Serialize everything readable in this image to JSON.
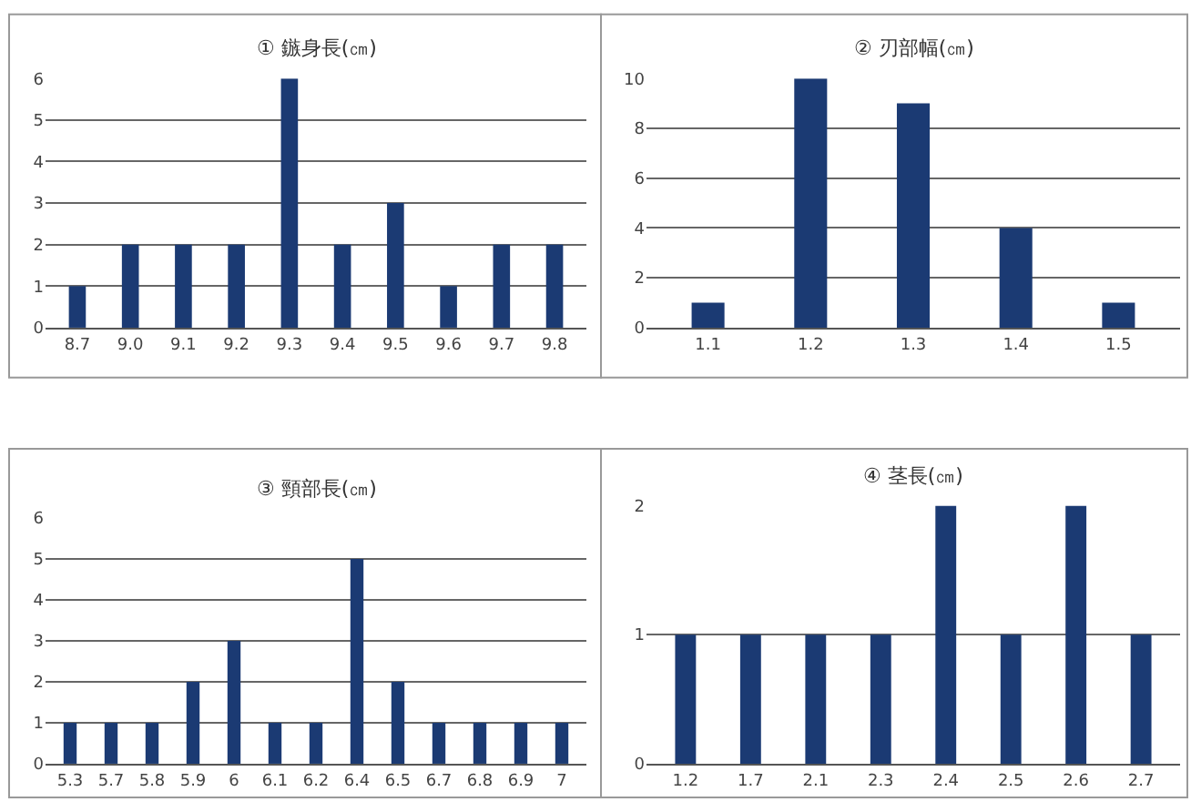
{
  "chart_data": [
    {
      "type": "bar",
      "title": "① 鏃身長(㎝)",
      "categories": [
        "8.7",
        "9.0",
        "9.1",
        "9.2",
        "9.3",
        "9.4",
        "9.5",
        "9.6",
        "9.7",
        "9.8"
      ],
      "values": [
        1,
        2,
        2,
        2,
        6,
        2,
        3,
        1,
        2,
        2
      ],
      "color": "#1b3a73",
      "ylim": [
        0,
        6
      ],
      "yticks": [
        0,
        1,
        2,
        3,
        4,
        5,
        6
      ],
      "grid": "y"
    },
    {
      "type": "bar",
      "title": "② 刃部幅(㎝)",
      "categories": [
        "1.1",
        "1.2",
        "1.3",
        "1.4",
        "1.5"
      ],
      "values": [
        1,
        10,
        9,
        4,
        1
      ],
      "color": "#1b3a73",
      "ylim": [
        0,
        10
      ],
      "yticks": [
        0,
        2,
        4,
        6,
        8,
        10
      ],
      "grid": "y"
    },
    {
      "type": "bar",
      "title": "③ 頸部長(㎝)",
      "categories": [
        "5.3",
        "5.7",
        "5.8",
        "5.9",
        "6",
        "6.1",
        "6.2",
        "6.4",
        "6.5",
        "6.7",
        "6.8",
        "6.9",
        "7"
      ],
      "values": [
        1,
        1,
        1,
        2,
        3,
        1,
        1,
        5,
        2,
        1,
        1,
        1,
        1
      ],
      "color": "#1b3a73",
      "ylim": [
        0,
        6
      ],
      "yticks": [
        0,
        1,
        2,
        3,
        4,
        5,
        6
      ],
      "grid": "y"
    },
    {
      "type": "bar",
      "title": "④ 茎長(㎝)",
      "categories": [
        "1.2",
        "1.7",
        "2.1",
        "2.3",
        "2.4",
        "2.5",
        "2.6",
        "2.7"
      ],
      "values": [
        1,
        1,
        1,
        1,
        2,
        1,
        2,
        1
      ],
      "color": "#1b3a73",
      "ylim": [
        0,
        2
      ],
      "yticks": [
        0,
        1,
        2
      ],
      "grid": "y"
    }
  ]
}
